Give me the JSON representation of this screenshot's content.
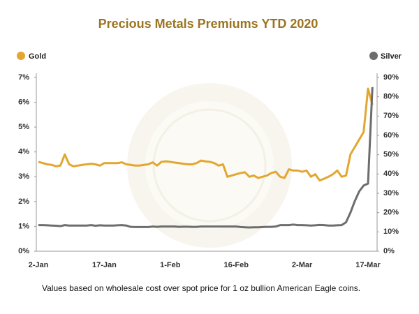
{
  "chart_data": {
    "type": "line",
    "title": "Precious Metals Premiums YTD 2020",
    "note": "Values based on wholesale cost over spot price for 1 oz bullion American Eagle coins.",
    "categories": [
      "2-Jan",
      null,
      null,
      null,
      null,
      null,
      null,
      null,
      null,
      null,
      null,
      null,
      null,
      null,
      null,
      "17-Jan",
      null,
      null,
      null,
      null,
      null,
      null,
      null,
      null,
      null,
      null,
      null,
      null,
      null,
      null,
      "1-Feb",
      null,
      null,
      null,
      null,
      null,
      null,
      null,
      null,
      null,
      null,
      null,
      null,
      null,
      null,
      "16-Feb",
      null,
      null,
      null,
      null,
      null,
      null,
      null,
      null,
      null,
      null,
      null,
      null,
      null,
      null,
      "2-Mar",
      null,
      null,
      null,
      null,
      null,
      null,
      null,
      null,
      null,
      null,
      null,
      null,
      null,
      null,
      "17-Mar",
      null
    ],
    "series": [
      {
        "name": "Gold",
        "color": "#e3a630",
        "axis": "y",
        "values": [
          3.6,
          3.55,
          3.5,
          3.48,
          3.42,
          3.45,
          3.9,
          3.5,
          3.42,
          3.45,
          3.48,
          3.5,
          3.52,
          3.5,
          3.45,
          3.55,
          3.55,
          3.55,
          3.55,
          3.58,
          3.5,
          3.48,
          3.45,
          3.45,
          3.48,
          3.5,
          3.58,
          3.45,
          3.6,
          3.62,
          3.6,
          3.57,
          3.55,
          3.52,
          3.5,
          3.5,
          3.55,
          3.65,
          3.62,
          3.6,
          3.55,
          3.45,
          3.5,
          3.0,
          3.05,
          3.1,
          3.15,
          3.18,
          3.0,
          3.05,
          2.95,
          3.0,
          3.05,
          3.15,
          3.2,
          3.0,
          2.95,
          3.3,
          3.25,
          3.25,
          3.2,
          3.25,
          3.0,
          3.1,
          2.85,
          2.92,
          3.0,
          3.1,
          3.25,
          3.0,
          3.05,
          3.9,
          4.2,
          4.5,
          4.8,
          6.55,
          5.9
        ]
      },
      {
        "name": "Silver",
        "color": "#6d6d6d",
        "axis": "y2",
        "values": [
          13.5,
          13.5,
          13.4,
          13.3,
          13.2,
          13,
          13.5,
          13.3,
          13.3,
          13.3,
          13.3,
          13.3,
          13.5,
          13.2,
          13.4,
          13.3,
          13.3,
          13.3,
          13.4,
          13.5,
          13.3,
          12.6,
          12.5,
          12.5,
          12.5,
          12.5,
          12.8,
          12.6,
          12.8,
          12.8,
          12.8,
          12.8,
          12.6,
          12.7,
          12.7,
          12.6,
          12.6,
          12.8,
          12.8,
          12.8,
          12.8,
          12.8,
          12.8,
          12.8,
          12.8,
          12.8,
          12.5,
          12.4,
          12.3,
          12.4,
          12.4,
          12.5,
          12.6,
          12.6,
          12.8,
          13.5,
          13.5,
          13.5,
          13.8,
          13.5,
          13.5,
          13.4,
          13.3,
          13.4,
          13.6,
          13.5,
          13.3,
          13.3,
          13.4,
          13.5,
          15,
          20,
          26,
          31,
          34,
          35,
          85
        ]
      }
    ],
    "ylim": [
      0,
      7
    ],
    "yticks": [
      {
        "value": 0,
        "label": "0%"
      },
      {
        "value": 1,
        "label": "1%"
      },
      {
        "value": 2,
        "label": "2%"
      },
      {
        "value": 3,
        "label": "3%"
      },
      {
        "value": 4,
        "label": "4%"
      },
      {
        "value": 5,
        "label": "5%"
      },
      {
        "value": 6,
        "label": "6%"
      },
      {
        "value": 7,
        "label": "7%"
      }
    ],
    "y2lim": [
      0,
      90
    ],
    "y2ticks": [
      {
        "value": 0,
        "label": "0%"
      },
      {
        "value": 10,
        "label": "10%"
      },
      {
        "value": 20,
        "label": "20%"
      },
      {
        "value": 30,
        "label": "30%"
      },
      {
        "value": 40,
        "label": "40%"
      },
      {
        "value": 50,
        "label": "50%"
      },
      {
        "value": 60,
        "label": "60%"
      },
      {
        "value": 70,
        "label": "70%"
      },
      {
        "value": 80,
        "label": "80%"
      },
      {
        "value": 90,
        "label": "90%"
      }
    ],
    "grid": false
  }
}
